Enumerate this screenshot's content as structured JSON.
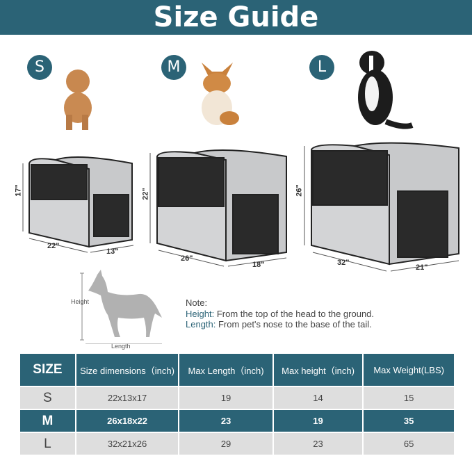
{
  "title": "Size Guide",
  "sizes": [
    {
      "badge": "S",
      "dims": {
        "height": "17\"",
        "length": "22\"",
        "width": "13\""
      }
    },
    {
      "badge": "M",
      "dims": {
        "height": "22\"",
        "length": "26\"",
        "width": "18\""
      }
    },
    {
      "badge": "L",
      "dims": {
        "height": "26\"",
        "length": "32\"",
        "width": "21\""
      }
    }
  ],
  "diagram": {
    "height_label": "Height",
    "length_label": "Length"
  },
  "note": {
    "title": "Note:",
    "height_key": "Height:",
    "height_text": " From the top of the head to the ground.",
    "length_key": "Length:",
    "length_text": " From pet's nose to the base of the tail."
  },
  "table": {
    "headers": [
      "SIZE",
      "Size dimensions（inch)",
      "Max Length（inch)",
      "Max height（inch)",
      "Max Weight(LBS)"
    ],
    "rows": [
      [
        "S",
        "22x13x17",
        "19",
        "14",
        "15"
      ],
      [
        "M",
        "26x18x22",
        "23",
        "19",
        "35"
      ],
      [
        "L",
        "32x21x26",
        "29",
        "23",
        "65"
      ]
    ]
  },
  "colors": {
    "brand": "#2b6376",
    "row": "#dedede"
  }
}
